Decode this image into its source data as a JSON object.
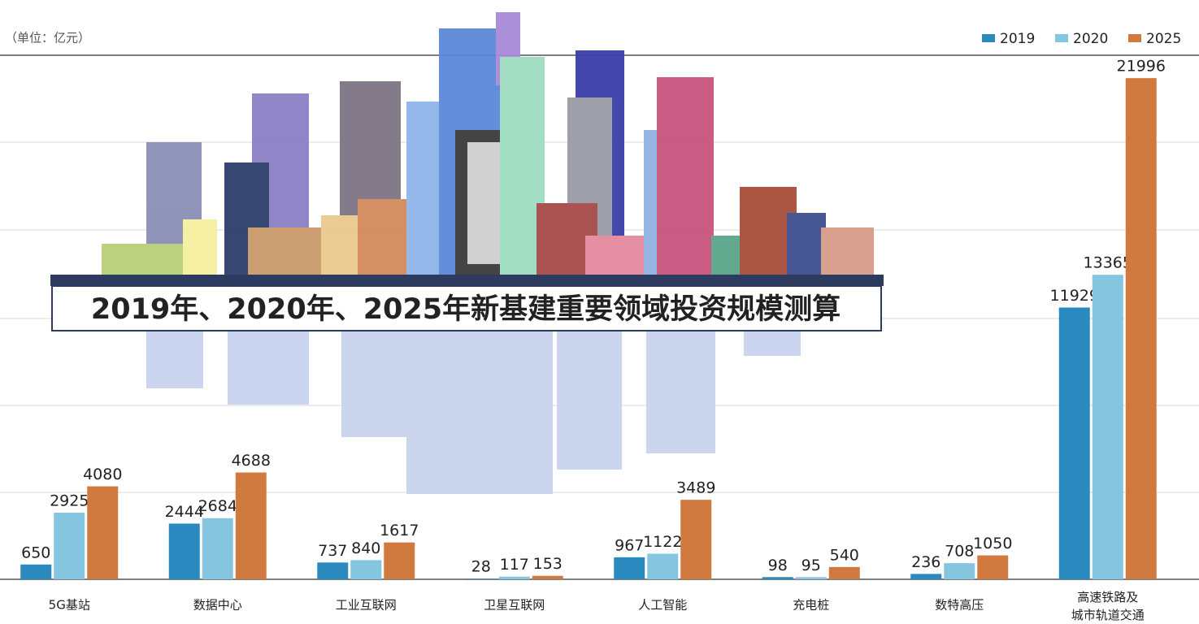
{
  "chart_data": {
    "type": "bar",
    "title": "2019年、2020年、2025年新基建重要领域投资规模测算",
    "subtitle": "（单位：亿元）",
    "categories": [
      "5G基站",
      "数据中心",
      "工业互联网",
      "卫星互联网",
      "人工智能",
      "充电桩",
      "数特高压",
      "高速铁路及城市轨道交通"
    ],
    "series": [
      {
        "name": "2019",
        "color": "#2a8ac0",
        "values": [
          650,
          2444,
          737,
          28,
          967,
          98,
          236,
          11929
        ]
      },
      {
        "name": "2020",
        "color": "#86c5e0",
        "values": [
          2925,
          2684,
          840,
          117,
          1122,
          95,
          708,
          13365
        ]
      },
      {
        "name": "2025",
        "color": "#d17a3f",
        "values": [
          4080,
          4688,
          1617,
          153,
          3489,
          540,
          1050,
          21996
        ]
      }
    ],
    "ylim": [
      0,
      23000
    ],
    "grid": true
  }
}
